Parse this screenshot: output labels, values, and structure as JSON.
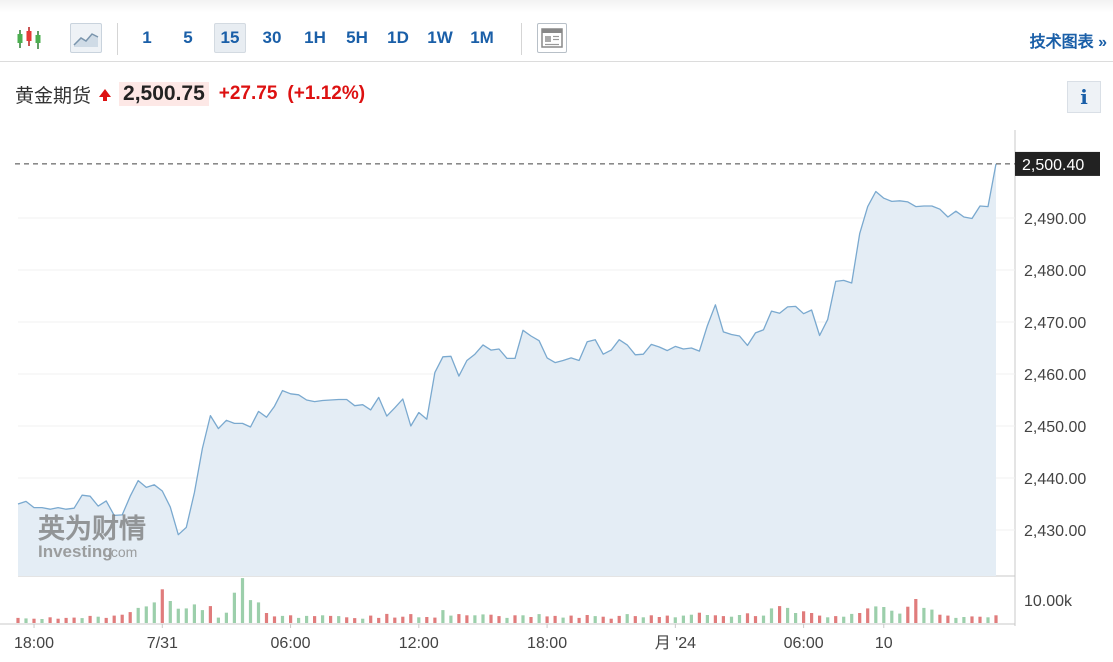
{
  "toolbar": {
    "icons": [
      "candlestick-icon",
      "area-chart-icon",
      "news-icon"
    ],
    "timeframes": [
      "1",
      "5",
      "15",
      "30",
      "1H",
      "5H",
      "1D",
      "1W",
      "1M"
    ],
    "active_timeframe": "15",
    "tech_chart_label": "技术图表 »"
  },
  "quote": {
    "name": "黄金期货",
    "price": "2,500.75",
    "change": "+27.75",
    "change_pct": "(+1.12%)",
    "direction": "up",
    "up_color": "#dd1111"
  },
  "info_label": "i",
  "watermark": {
    "cn": "英为财情",
    "en": "Investing",
    "suffix": ".com"
  },
  "chart_data": {
    "type": "area",
    "title": "",
    "xlabel": "",
    "ylabel": "",
    "ylim": [
      2420,
      2508
    ],
    "y_ticks": [
      "2,430.00",
      "2,440.00",
      "2,450.00",
      "2,460.00",
      "2,470.00",
      "2,480.00",
      "2,490.00"
    ],
    "y_tick_values": [
      2430,
      2440,
      2450,
      2460,
      2470,
      2480,
      2490
    ],
    "x_tick_labels": [
      "18:00",
      "7/31",
      "06:00",
      "12:00",
      "18:00",
      "月 '24",
      "06:00",
      "10"
    ],
    "x_tick_index": [
      2,
      18,
      34,
      50,
      66,
      82,
      98,
      108
    ],
    "last_value_label": "2,500.40",
    "last_value": 2500.4,
    "volume_axis_label": "10.00k",
    "volume_ylim": [
      0,
      14000
    ],
    "line_color": "#7aa9cf",
    "fill_color": "#e4edf5",
    "up_volume_color": "#9ccfab",
    "down_volume_color": "#e07c7c",
    "series": [
      {
        "values": [
          2435.0,
          2435.5,
          2434.3,
          2434.3,
          2434.0,
          2434.3,
          2434.0,
          2434.2,
          2436.7,
          2436.5,
          2434.6,
          2435.6,
          2432.8,
          2432.9,
          2436.5,
          2439.5,
          2438.2,
          2438.7,
          2437.5,
          2434.4,
          2429.1,
          2430.5,
          2437.2,
          2445.7,
          2452.0,
          2449.5,
          2451.1,
          2450.5,
          2450.5,
          2449.8,
          2452.8,
          2451.7,
          2453.8,
          2456.8,
          2456.2,
          2456.0,
          2455.0,
          2454.7,
          2454.9,
          2455.0,
          2455.1,
          2455.1,
          2453.9,
          2454.1,
          2453.1,
          2455.5,
          2451.9,
          2453.5,
          2455.2,
          2450.0,
          2452.6,
          2451.3,
          2460.3,
          2463.3,
          2463.4,
          2459.6,
          2462.6,
          2463.8,
          2465.6,
          2464.6,
          2464.8,
          2463.0,
          2463.0,
          2468.4,
          2467.3,
          2466.4,
          2463.1,
          2462.2,
          2462.6,
          2463.1,
          2462.6,
          2466.2,
          2466.6,
          2463.8,
          2464.6,
          2466.6,
          2465.6,
          2463.7,
          2463.8,
          2465.7,
          2465.2,
          2464.5,
          2465.3,
          2464.8,
          2465.0,
          2464.4,
          2469.3,
          2473.3,
          2468.1,
          2467.6,
          2467.3,
          2465.5,
          2467.9,
          2468.5,
          2472.1,
          2471.7,
          2472.9,
          2473.0,
          2471.6,
          2472.3,
          2467.4,
          2470.5,
          2477.8,
          2478.0,
          2477.5,
          2487.0,
          2492.2,
          2495.1,
          2493.8,
          2493.2,
          2493.3,
          2493.1,
          2492.2,
          2492.3,
          2492.3,
          2491.7,
          2490.2,
          2491.3,
          2490.2,
          2489.9,
          2492.3,
          2492.2,
          2500.4
        ]
      }
    ],
    "volume": [
      [
        1800,
        "d"
      ],
      [
        1600,
        "g"
      ],
      [
        1500,
        "d"
      ],
      [
        1400,
        "g"
      ],
      [
        2000,
        "d"
      ],
      [
        1500,
        "d"
      ],
      [
        1800,
        "d"
      ],
      [
        1900,
        "d"
      ],
      [
        1700,
        "g"
      ],
      [
        2500,
        "d"
      ],
      [
        2200,
        "g"
      ],
      [
        1800,
        "d"
      ],
      [
        2600,
        "d"
      ],
      [
        2900,
        "d"
      ],
      [
        3800,
        "d"
      ],
      [
        5300,
        "g"
      ],
      [
        5800,
        "g"
      ],
      [
        7200,
        "g"
      ],
      [
        11800,
        "d"
      ],
      [
        7700,
        "g"
      ],
      [
        5000,
        "g"
      ],
      [
        5100,
        "g"
      ],
      [
        6500,
        "g"
      ],
      [
        4500,
        "g"
      ],
      [
        5900,
        "d"
      ],
      [
        1900,
        "g"
      ],
      [
        3600,
        "g"
      ],
      [
        10600,
        "g"
      ],
      [
        15700,
        "g"
      ],
      [
        8000,
        "g"
      ],
      [
        7200,
        "g"
      ],
      [
        3500,
        "d"
      ],
      [
        2300,
        "d"
      ],
      [
        2500,
        "g"
      ],
      [
        2700,
        "d"
      ],
      [
        1800,
        "g"
      ],
      [
        2500,
        "g"
      ],
      [
        2400,
        "d"
      ],
      [
        2700,
        "g"
      ],
      [
        2500,
        "d"
      ],
      [
        2400,
        "g"
      ],
      [
        2000,
        "d"
      ],
      [
        1700,
        "d"
      ],
      [
        1500,
        "g"
      ],
      [
        2600,
        "d"
      ],
      [
        1800,
        "d"
      ],
      [
        3200,
        "d"
      ],
      [
        1900,
        "d"
      ],
      [
        2200,
        "d"
      ],
      [
        3100,
        "d"
      ],
      [
        2000,
        "g"
      ],
      [
        2100,
        "d"
      ],
      [
        1900,
        "d"
      ],
      [
        4500,
        "g"
      ],
      [
        2600,
        "g"
      ],
      [
        3100,
        "d"
      ],
      [
        2700,
        "d"
      ],
      [
        2700,
        "g"
      ],
      [
        3000,
        "g"
      ],
      [
        2900,
        "d"
      ],
      [
        2400,
        "d"
      ],
      [
        1800,
        "g"
      ],
      [
        2700,
        "d"
      ],
      [
        2700,
        "g"
      ],
      [
        2100,
        "d"
      ],
      [
        3100,
        "g"
      ],
      [
        2300,
        "d"
      ],
      [
        2500,
        "d"
      ],
      [
        1900,
        "g"
      ],
      [
        2600,
        "d"
      ],
      [
        1800,
        "d"
      ],
      [
        2800,
        "d"
      ],
      [
        2400,
        "g"
      ],
      [
        2200,
        "d"
      ],
      [
        1500,
        "d"
      ],
      [
        2500,
        "d"
      ],
      [
        3100,
        "g"
      ],
      [
        2400,
        "d"
      ],
      [
        2000,
        "g"
      ],
      [
        2700,
        "d"
      ],
      [
        2100,
        "d"
      ],
      [
        2600,
        "d"
      ],
      [
        2000,
        "g"
      ],
      [
        2600,
        "g"
      ],
      [
        2900,
        "g"
      ],
      [
        3600,
        "d"
      ],
      [
        2800,
        "g"
      ],
      [
        2700,
        "d"
      ],
      [
        2400,
        "d"
      ],
      [
        2200,
        "g"
      ],
      [
        2800,
        "g"
      ],
      [
        3400,
        "d"
      ],
      [
        2400,
        "d"
      ],
      [
        2600,
        "g"
      ],
      [
        5100,
        "g"
      ],
      [
        5900,
        "d"
      ],
      [
        5300,
        "g"
      ],
      [
        3500,
        "g"
      ],
      [
        4100,
        "d"
      ],
      [
        3500,
        "d"
      ],
      [
        2600,
        "d"
      ],
      [
        2000,
        "g"
      ],
      [
        2400,
        "d"
      ],
      [
        2200,
        "g"
      ],
      [
        3200,
        "g"
      ],
      [
        3500,
        "d"
      ],
      [
        5100,
        "d"
      ],
      [
        5800,
        "g"
      ],
      [
        5600,
        "g"
      ],
      [
        4300,
        "g"
      ],
      [
        3300,
        "g"
      ],
      [
        5700,
        "d"
      ],
      [
        8400,
        "d"
      ],
      [
        5300,
        "g"
      ],
      [
        4700,
        "g"
      ],
      [
        2900,
        "d"
      ],
      [
        2600,
        "d"
      ],
      [
        1800,
        "g"
      ],
      [
        2100,
        "g"
      ],
      [
        2300,
        "d"
      ],
      [
        2200,
        "d"
      ],
      [
        2000,
        "g"
      ],
      [
        2700,
        "d"
      ]
    ]
  }
}
